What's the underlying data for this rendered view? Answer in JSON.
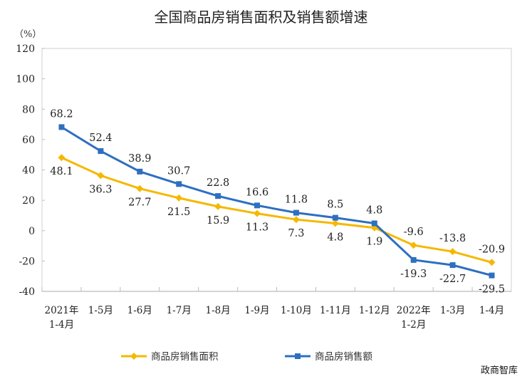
{
  "chart_data": {
    "type": "line",
    "title": "全国商品房销售面积及销售额增速",
    "ylabel": "（%）",
    "xlabel": "",
    "ylim": [
      -40,
      120
    ],
    "yticks": [
      -40,
      -20,
      0,
      20,
      40,
      60,
      80,
      100,
      120
    ],
    "grid": false,
    "legend_position": "bottom",
    "categories": [
      [
        "2021年",
        "1-4月"
      ],
      [
        "1-5月"
      ],
      [
        "1-6月"
      ],
      [
        "1-7月"
      ],
      [
        "1-8月"
      ],
      [
        "1-9月"
      ],
      [
        "1-10月"
      ],
      [
        "1-11月"
      ],
      [
        "1-12月"
      ],
      [
        "2022年",
        "1-2月"
      ],
      [
        "1-3月"
      ],
      [
        "1-4月"
      ]
    ],
    "series": [
      {
        "name": "商品房销售面积",
        "color": "#f5b800",
        "marker": "diamond",
        "values": [
          48.1,
          36.3,
          27.7,
          21.5,
          15.9,
          11.3,
          7.3,
          4.8,
          1.9,
          -9.6,
          -13.8,
          -20.9
        ]
      },
      {
        "name": "商品房销售额",
        "color": "#2e6fc0",
        "marker": "square",
        "values": [
          68.2,
          52.4,
          38.9,
          30.7,
          22.8,
          16.6,
          11.8,
          8.5,
          4.8,
          -19.3,
          -22.7,
          -29.5
        ]
      }
    ]
  },
  "watermark": "政商智库"
}
